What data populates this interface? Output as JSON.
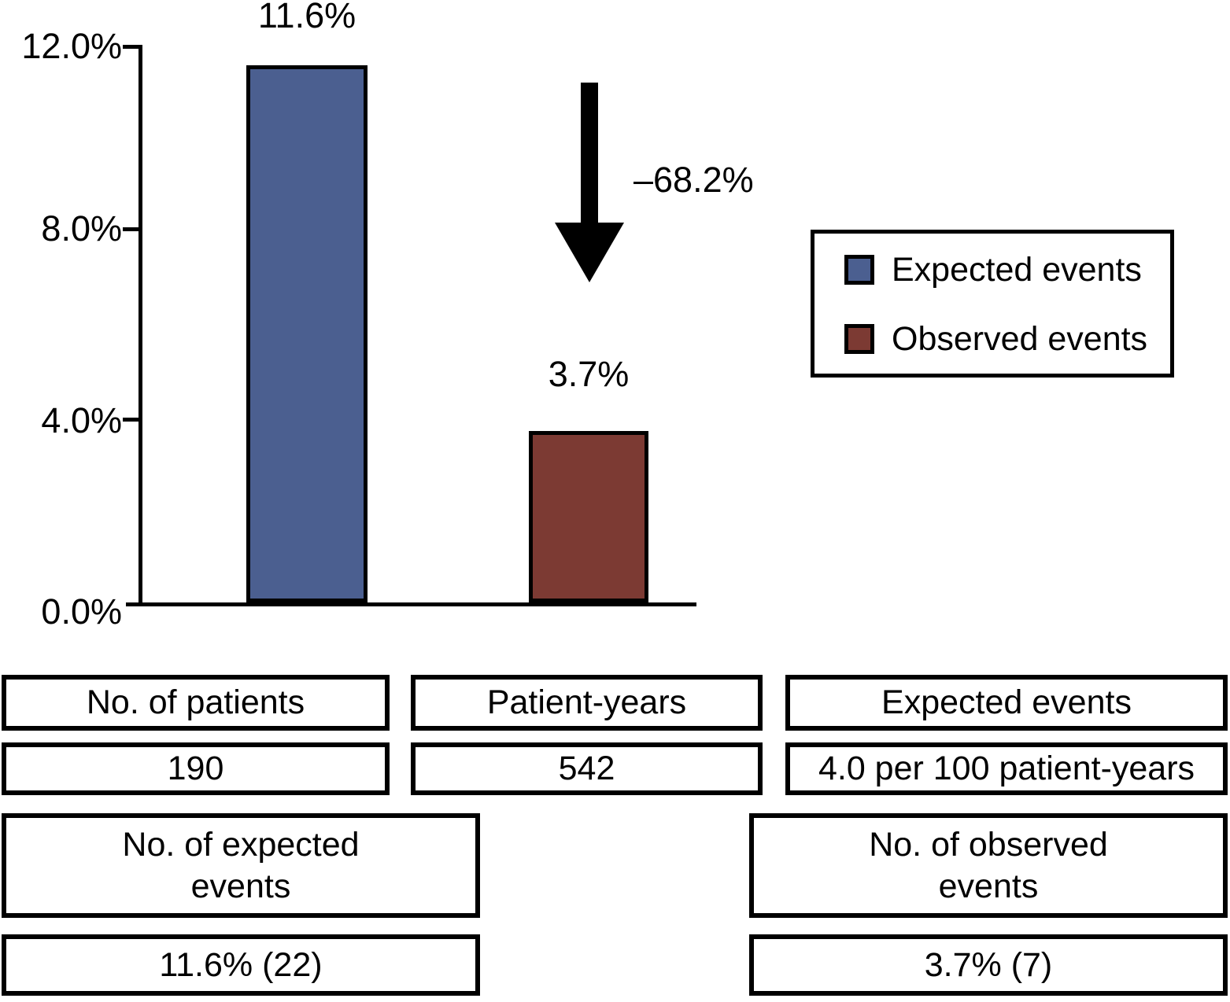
{
  "chart_data": {
    "type": "bar",
    "categories": [
      "Expected events",
      "Observed events"
    ],
    "values": [
      11.6,
      3.7
    ],
    "bar_labels": [
      "11.6%",
      "3.7%"
    ],
    "colors": [
      "#4B5F90",
      "#7C3A33"
    ],
    "title": "",
    "xlabel": "",
    "ylabel": "",
    "ylim": [
      0,
      12
    ],
    "y_tick_values": [
      12,
      8,
      4,
      0
    ],
    "y_tick_labels": [
      "12.0%",
      "8.0%",
      "4.0%",
      "0.0%"
    ],
    "grid": false,
    "legend_position": "right-middle",
    "annotation": {
      "type": "down-arrow",
      "text": "–68.2%"
    }
  },
  "legend": {
    "items": [
      {
        "label": "Expected events",
        "color": "#4B5F90"
      },
      {
        "label": "Observed events",
        "color": "#7C3A33"
      }
    ]
  },
  "tables": {
    "top_headers": [
      "No. of patients",
      "Patient-years",
      "Expected events"
    ],
    "top_values": [
      "190",
      "542",
      "4.0 per 100 patient-years"
    ],
    "bottom_headers": [
      "No. of expected events",
      "No. of observed events"
    ],
    "bottom_values": [
      "11.6% (22)",
      "3.7% (7)"
    ]
  }
}
